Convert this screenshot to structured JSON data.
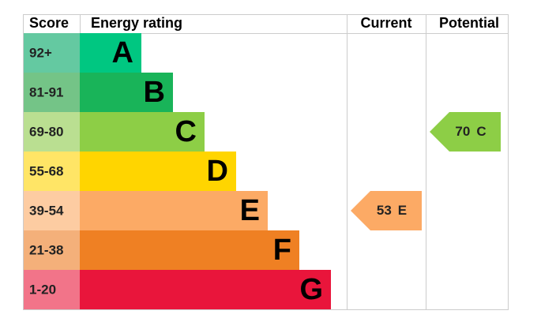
{
  "headers": {
    "score": "Score",
    "rating": "Energy rating",
    "current": "Current",
    "potential": "Potential"
  },
  "bands": [
    {
      "score": "92+",
      "letter": "A",
      "color": "#00c781",
      "score_color": "#64c9a1"
    },
    {
      "score": "81-91",
      "letter": "B",
      "color": "#19b459",
      "score_color": "#74c487"
    },
    {
      "score": "69-80",
      "letter": "C",
      "color": "#8dce46",
      "score_color": "#badf91"
    },
    {
      "score": "55-68",
      "letter": "D",
      "color": "#ffd500",
      "score_color": "#ffe566"
    },
    {
      "score": "39-54",
      "letter": "E",
      "color": "#fcaa65",
      "score_color": "#fdcca2"
    },
    {
      "score": "21-38",
      "letter": "F",
      "color": "#ef8023",
      "score_color": "#f4b07a"
    },
    {
      "score": "1-20",
      "letter": "G",
      "color": "#e9153b",
      "score_color": "#f27489"
    }
  ],
  "current": {
    "value": 53,
    "rating": "E"
  },
  "potential": {
    "value": 70,
    "rating": "C"
  }
}
